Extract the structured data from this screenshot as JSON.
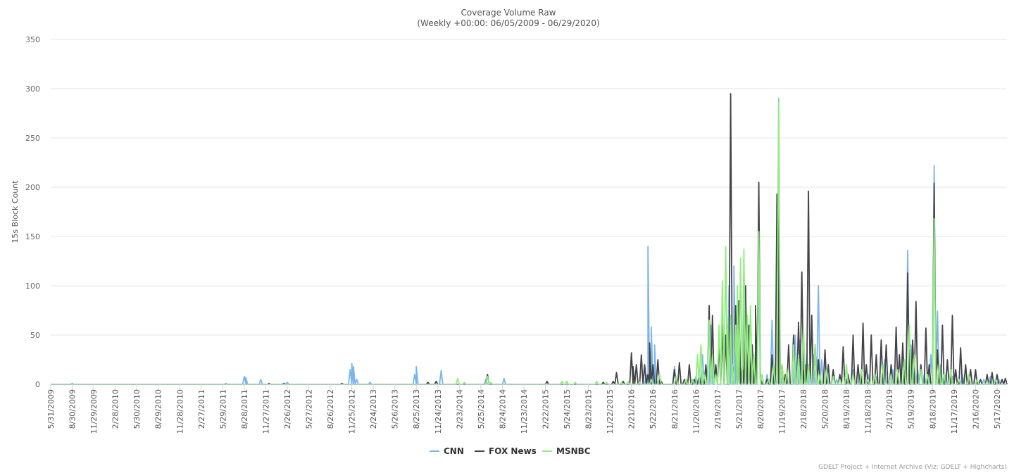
{
  "chart_data": {
    "type": "line",
    "title": "Coverage Volume Raw",
    "subtitle": "(Weekly +00:00: 06/05/2009 - 06/29/2020)",
    "ylabel": "15s Block Count",
    "ylim": [
      0,
      350
    ],
    "yticks": [
      0,
      50,
      100,
      150,
      200,
      250,
      300,
      350
    ],
    "xlim": [
      "2009-05-31",
      "2020-06-28"
    ],
    "x_ticks": [
      "5/31/2009",
      "8/30/2009",
      "11/29/2009",
      "2/28/2010",
      "5/30/2010",
      "8/29/2010",
      "11/28/2010",
      "2/27/2011",
      "5/29/2011",
      "8/28/2011",
      "11/27/2011",
      "2/26/2012",
      "5/27/2012",
      "8/26/2012",
      "11/25/2012",
      "2/24/2013",
      "5/26/2013",
      "8/25/2013",
      "11/24/2013",
      "2/23/2014",
      "5/25/2014",
      "8/24/2014",
      "11/23/2014",
      "2/22/2015",
      "5/24/2015",
      "8/23/2015",
      "11/22/2015",
      "2/21/2016",
      "5/22/2016",
      "8/21/2016",
      "11/20/2016",
      "2/19/2017",
      "5/21/2017",
      "8/20/2017",
      "11/19/2017",
      "2/18/2018",
      "5/20/2018",
      "8/19/2018",
      "11/18/2018",
      "2/17/2019",
      "5/19/2019",
      "8/18/2019",
      "11/17/2019",
      "2/16/2020",
      "5/17/2020"
    ],
    "grid": true,
    "legend": "bottom-center",
    "series": [
      {
        "name": "CNN",
        "color": "#7cb5ec",
        "points": [
          [
            "2009-08-30",
            1
          ],
          [
            "2011-06-12",
            1
          ],
          [
            "2011-08-28",
            8
          ],
          [
            "2011-09-04",
            7
          ],
          [
            "2011-11-06",
            5
          ],
          [
            "2012-02-26",
            2
          ],
          [
            "2012-11-18",
            15
          ],
          [
            "2012-11-25",
            21
          ],
          [
            "2012-12-02",
            18
          ],
          [
            "2012-12-16",
            5
          ],
          [
            "2013-02-10",
            2
          ],
          [
            "2013-08-18",
            10
          ],
          [
            "2013-08-25",
            18
          ],
          [
            "2013-12-08",
            14
          ],
          [
            "2014-06-15",
            5
          ],
          [
            "2014-08-31",
            6
          ],
          [
            "2016-04-24",
            10
          ],
          [
            "2016-05-01",
            140
          ],
          [
            "2016-05-08",
            20
          ],
          [
            "2016-05-15",
            58
          ],
          [
            "2016-05-22",
            15
          ],
          [
            "2016-05-29",
            40
          ],
          [
            "2016-06-05",
            5
          ],
          [
            "2016-08-21",
            18
          ],
          [
            "2016-11-20",
            8
          ],
          [
            "2016-12-18",
            30
          ],
          [
            "2017-01-22",
            60
          ],
          [
            "2017-02-12",
            20
          ],
          [
            "2017-03-12",
            60
          ],
          [
            "2017-04-09",
            100
          ],
          [
            "2017-04-16",
            60
          ],
          [
            "2017-04-23",
            5
          ],
          [
            "2017-04-30",
            120
          ],
          [
            "2017-05-07",
            30
          ],
          [
            "2017-05-21",
            20
          ],
          [
            "2017-06-11",
            90
          ],
          [
            "2017-07-02",
            40
          ],
          [
            "2017-07-23",
            30
          ],
          [
            "2017-08-13",
            110
          ],
          [
            "2017-09-17",
            10
          ],
          [
            "2017-10-08",
            65
          ],
          [
            "2017-10-22",
            5
          ],
          [
            "2017-11-05",
            290
          ],
          [
            "2017-11-12",
            20
          ],
          [
            "2017-12-10",
            10
          ],
          [
            "2018-01-14",
            50
          ],
          [
            "2018-02-04",
            45
          ],
          [
            "2018-03-04",
            30
          ],
          [
            "2018-04-01",
            30
          ],
          [
            "2018-04-22",
            100
          ],
          [
            "2018-05-06",
            25
          ],
          [
            "2018-06-03",
            10
          ],
          [
            "2018-07-08",
            5
          ],
          [
            "2018-08-19",
            5
          ],
          [
            "2018-09-16",
            15
          ],
          [
            "2018-10-14",
            10
          ],
          [
            "2018-11-18",
            10
          ],
          [
            "2018-12-23",
            8
          ],
          [
            "2019-01-27",
            25
          ],
          [
            "2019-03-03",
            15
          ],
          [
            "2019-04-14",
            30
          ],
          [
            "2019-05-05",
            136
          ],
          [
            "2019-05-19",
            40
          ],
          [
            "2019-06-16",
            15
          ],
          [
            "2019-07-14",
            10
          ],
          [
            "2019-08-11",
            30
          ],
          [
            "2019-08-25",
            222
          ],
          [
            "2019-09-08",
            74
          ],
          [
            "2019-09-22",
            20
          ],
          [
            "2019-10-13",
            10
          ],
          [
            "2019-11-10",
            8
          ],
          [
            "2019-12-22",
            10
          ],
          [
            "2020-02-16",
            12
          ],
          [
            "2020-03-22",
            5
          ],
          [
            "2020-04-19",
            8
          ],
          [
            "2020-05-24",
            5
          ]
        ]
      },
      {
        "name": "FOX News",
        "color": "#434348",
        "points": [
          [
            "2011-12-11",
            1
          ],
          [
            "2012-02-12",
            1
          ],
          [
            "2012-10-14",
            1
          ],
          [
            "2013-10-13",
            2
          ],
          [
            "2013-11-17",
            3
          ],
          [
            "2014-06-22",
            10
          ],
          [
            "2015-03-01",
            3
          ],
          [
            "2015-10-25",
            2
          ],
          [
            "2015-12-06",
            3
          ],
          [
            "2015-12-20",
            12
          ],
          [
            "2016-01-17",
            3
          ],
          [
            "2016-02-21",
            32
          ],
          [
            "2016-02-28",
            18
          ],
          [
            "2016-03-13",
            20
          ],
          [
            "2016-04-03",
            30
          ],
          [
            "2016-04-17",
            20
          ],
          [
            "2016-05-01",
            10
          ],
          [
            "2016-05-08",
            42
          ],
          [
            "2016-05-22",
            20
          ],
          [
            "2016-06-12",
            25
          ],
          [
            "2016-06-26",
            3
          ],
          [
            "2016-08-21",
            15
          ],
          [
            "2016-09-11",
            22
          ],
          [
            "2016-10-02",
            5
          ],
          [
            "2016-10-23",
            20
          ],
          [
            "2016-11-13",
            5
          ],
          [
            "2016-12-04",
            10
          ],
          [
            "2017-01-01",
            20
          ],
          [
            "2017-01-15",
            80
          ],
          [
            "2017-01-29",
            70
          ],
          [
            "2017-02-12",
            20
          ],
          [
            "2017-02-26",
            40
          ],
          [
            "2017-03-12",
            60
          ],
          [
            "2017-03-26",
            50
          ],
          [
            "2017-04-16",
            295
          ],
          [
            "2017-04-23",
            20
          ],
          [
            "2017-05-07",
            80
          ],
          [
            "2017-05-21",
            85
          ],
          [
            "2017-06-04",
            20
          ],
          [
            "2017-06-18",
            100
          ],
          [
            "2017-07-02",
            60
          ],
          [
            "2017-07-16",
            40
          ],
          [
            "2017-07-23",
            25
          ],
          [
            "2017-07-30",
            80
          ],
          [
            "2017-08-13",
            205
          ],
          [
            "2017-08-20",
            10
          ],
          [
            "2017-09-17",
            5
          ],
          [
            "2017-10-08",
            30
          ],
          [
            "2017-10-29",
            193
          ],
          [
            "2017-11-05",
            190
          ],
          [
            "2017-11-19",
            20
          ],
          [
            "2017-12-03",
            10
          ],
          [
            "2017-12-17",
            40
          ],
          [
            "2018-01-07",
            50
          ],
          [
            "2018-01-28",
            63
          ],
          [
            "2018-02-11",
            114
          ],
          [
            "2018-02-25",
            20
          ],
          [
            "2018-03-11",
            196
          ],
          [
            "2018-03-25",
            70
          ],
          [
            "2018-04-08",
            40
          ],
          [
            "2018-04-22",
            25
          ],
          [
            "2018-05-20",
            35
          ],
          [
            "2018-06-03",
            20
          ],
          [
            "2018-06-24",
            15
          ],
          [
            "2018-07-22",
            10
          ],
          [
            "2018-08-05",
            38
          ],
          [
            "2018-08-26",
            10
          ],
          [
            "2018-09-16",
            50
          ],
          [
            "2018-10-07",
            20
          ],
          [
            "2018-10-28",
            62
          ],
          [
            "2018-11-11",
            20
          ],
          [
            "2018-12-02",
            50
          ],
          [
            "2018-12-23",
            30
          ],
          [
            "2019-01-13",
            45
          ],
          [
            "2019-02-03",
            40
          ],
          [
            "2019-02-24",
            20
          ],
          [
            "2019-03-17",
            58
          ],
          [
            "2019-03-31",
            30
          ],
          [
            "2019-04-14",
            42
          ],
          [
            "2019-05-05",
            113
          ],
          [
            "2019-05-26",
            45
          ],
          [
            "2019-06-09",
            84
          ],
          [
            "2019-06-30",
            20
          ],
          [
            "2019-07-21",
            57
          ],
          [
            "2019-08-04",
            20
          ],
          [
            "2019-08-25",
            204
          ],
          [
            "2019-09-08",
            35
          ],
          [
            "2019-09-29",
            60
          ],
          [
            "2019-10-20",
            25
          ],
          [
            "2019-11-10",
            70
          ],
          [
            "2019-11-24",
            15
          ],
          [
            "2019-12-15",
            37
          ],
          [
            "2020-01-05",
            20
          ],
          [
            "2020-01-26",
            15
          ],
          [
            "2020-02-16",
            15
          ],
          [
            "2020-03-08",
            5
          ],
          [
            "2020-04-05",
            10
          ],
          [
            "2020-04-26",
            12
          ],
          [
            "2020-05-17",
            10
          ],
          [
            "2020-06-07",
            5
          ],
          [
            "2020-06-21",
            6
          ]
        ]
      },
      {
        "name": "MSNBC",
        "color": "#90ed7d",
        "points": [
          [
            "2014-02-16",
            6
          ],
          [
            "2014-03-16",
            2
          ],
          [
            "2014-06-22",
            8
          ],
          [
            "2014-07-06",
            2
          ],
          [
            "2015-05-03",
            3
          ],
          [
            "2015-05-24",
            3
          ],
          [
            "2015-06-28",
            2
          ],
          [
            "2015-09-27",
            3
          ],
          [
            "2015-11-08",
            2
          ],
          [
            "2016-01-10",
            2
          ],
          [
            "2016-02-07",
            3
          ],
          [
            "2016-03-27",
            2
          ],
          [
            "2016-05-15",
            5
          ],
          [
            "2016-06-19",
            10
          ],
          [
            "2016-08-28",
            8
          ],
          [
            "2016-10-09",
            5
          ],
          [
            "2016-11-06",
            5
          ],
          [
            "2016-11-27",
            30
          ],
          [
            "2016-12-11",
            40
          ],
          [
            "2016-12-25",
            10
          ],
          [
            "2017-01-15",
            65
          ],
          [
            "2017-01-29",
            30
          ],
          [
            "2017-02-12",
            10
          ],
          [
            "2017-02-26",
            60
          ],
          [
            "2017-03-12",
            105
          ],
          [
            "2017-03-26",
            140
          ],
          [
            "2017-04-02",
            60
          ],
          [
            "2017-04-16",
            70
          ],
          [
            "2017-04-23",
            20
          ],
          [
            "2017-05-07",
            60
          ],
          [
            "2017-05-14",
            100
          ],
          [
            "2017-05-28",
            128
          ],
          [
            "2017-06-11",
            137
          ],
          [
            "2017-06-25",
            70
          ],
          [
            "2017-07-09",
            80
          ],
          [
            "2017-07-23",
            30
          ],
          [
            "2017-08-13",
            155
          ],
          [
            "2017-08-27",
            10
          ],
          [
            "2017-09-24",
            5
          ],
          [
            "2017-10-15",
            20
          ],
          [
            "2017-11-05",
            286
          ],
          [
            "2017-11-19",
            20
          ],
          [
            "2017-12-10",
            15
          ],
          [
            "2018-01-07",
            40
          ],
          [
            "2018-01-28",
            30
          ],
          [
            "2018-02-18",
            60
          ],
          [
            "2018-03-11",
            20
          ],
          [
            "2018-04-08",
            40
          ],
          [
            "2018-04-29",
            10
          ],
          [
            "2018-05-27",
            15
          ],
          [
            "2018-06-24",
            8
          ],
          [
            "2018-07-22",
            5
          ],
          [
            "2018-08-19",
            20
          ],
          [
            "2018-09-16",
            10
          ],
          [
            "2018-10-21",
            15
          ],
          [
            "2018-11-18",
            5
          ],
          [
            "2018-12-16",
            10
          ],
          [
            "2019-01-20",
            20
          ],
          [
            "2019-02-24",
            10
          ],
          [
            "2019-03-24",
            15
          ],
          [
            "2019-04-21",
            25
          ],
          [
            "2019-05-12",
            60
          ],
          [
            "2019-06-02",
            30
          ],
          [
            "2019-06-30",
            15
          ],
          [
            "2019-07-28",
            10
          ],
          [
            "2019-08-25",
            168
          ],
          [
            "2019-09-15",
            20
          ],
          [
            "2019-10-06",
            10
          ],
          [
            "2019-11-03",
            15
          ],
          [
            "2019-12-08",
            5
          ],
          [
            "2020-01-19",
            10
          ],
          [
            "2020-02-23",
            5
          ],
          [
            "2020-04-05",
            3
          ],
          [
            "2020-05-10",
            5
          ]
        ]
      }
    ]
  },
  "credit": "GDELT Project + Internet Archive (Viz: GDELT + Highcharts)"
}
